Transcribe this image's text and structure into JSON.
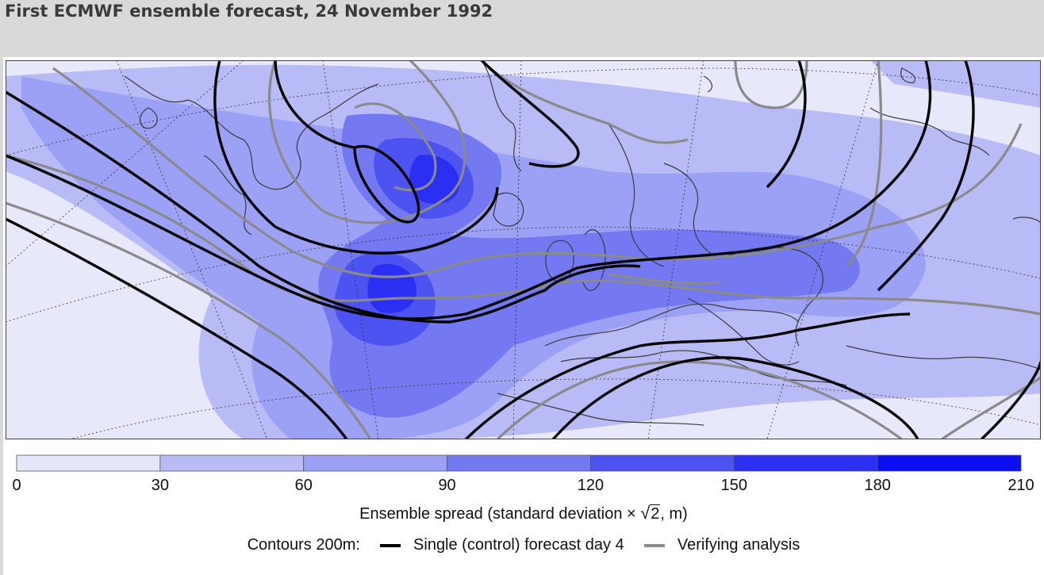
{
  "header": {
    "title": "First ECMWF ensemble forecast, 24 November 1992"
  },
  "colorbar": {
    "ticks": [
      "0",
      "30",
      "60",
      "90",
      "120",
      "150",
      "180",
      "210"
    ],
    "colors": [
      "#e6e6fb",
      "#b9bbf7",
      "#9da1f5",
      "#7479f2",
      "#4c53f0",
      "#2b2ff2",
      "#0d0ff2"
    ]
  },
  "caption": {
    "spread_label_prefix": "Ensemble spread (standard deviation ×",
    "sqrt_arg": "2",
    "spread_label_suffix": ", m)",
    "contours_label": "Contours 200m:",
    "control_label": "Single (control) forecast day 4",
    "analysis_label": "Verifying analysis"
  },
  "legend_colors": {
    "control": "#000000",
    "analysis": "#8a8a8a"
  }
}
